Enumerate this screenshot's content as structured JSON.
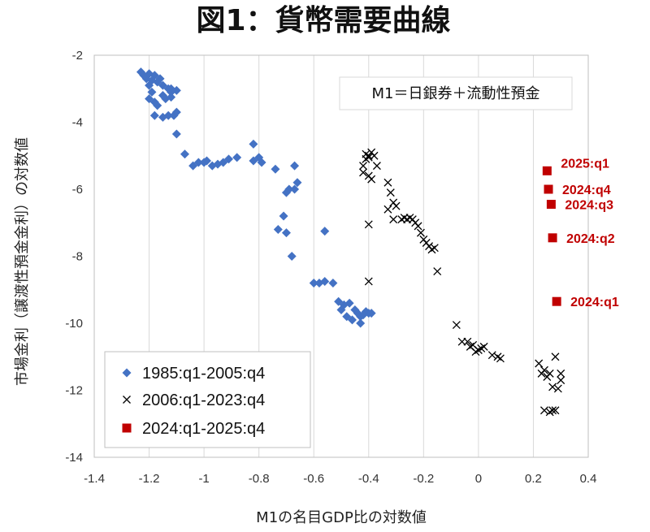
{
  "chart_data": {
    "type": "scatter",
    "title": "図1：貨幣需要曲線",
    "xlabel": "M1の名目GDP比の対数値",
    "ylabel": "市場金利（譲渡性預金金利）の対数値",
    "xlim": [
      -1.4,
      0.4
    ],
    "ylim": [
      -14,
      -2
    ],
    "x_ticks": [
      "-1.4",
      "-1.2",
      "-1",
      "-0.8",
      "-0.6",
      "-0.4",
      "-0.2",
      "0",
      "0.2",
      "0.4"
    ],
    "y_ticks": [
      "-2",
      "-4",
      "-6",
      "-8",
      "-10",
      "-12",
      "-14"
    ],
    "grid": "vertical",
    "legend_position": "bottom-left",
    "annotation": "M1＝日銀券＋流動性預金",
    "series": [
      {
        "name": "1985:q1-2005:q4",
        "marker": "diamond",
        "color": "#4472c4",
        "points": [
          [
            -1.23,
            -2.5
          ],
          [
            -1.22,
            -2.6
          ],
          [
            -1.21,
            -2.7
          ],
          [
            -1.2,
            -2.55
          ],
          [
            -1.19,
            -2.75
          ],
          [
            -1.2,
            -2.9
          ],
          [
            -1.18,
            -2.6
          ],
          [
            -1.17,
            -2.8
          ],
          [
            -1.16,
            -2.7
          ],
          [
            -1.15,
            -2.9
          ],
          [
            -1.19,
            -3.1
          ],
          [
            -1.2,
            -3.3
          ],
          [
            -1.18,
            -3.4
          ],
          [
            -1.15,
            -3.2
          ],
          [
            -1.13,
            -3.0
          ],
          [
            -1.12,
            -3.1
          ],
          [
            -1.1,
            -3.05
          ],
          [
            -1.14,
            -3.3
          ],
          [
            -1.12,
            -3.25
          ],
          [
            -1.17,
            -3.5
          ],
          [
            -1.18,
            -3.8
          ],
          [
            -1.15,
            -3.85
          ],
          [
            -1.13,
            -3.8
          ],
          [
            -1.11,
            -3.8
          ],
          [
            -1.1,
            -3.7
          ],
          [
            -1.12,
            -3.0
          ],
          [
            -1.1,
            -4.35
          ],
          [
            -1.07,
            -4.95
          ],
          [
            -1.04,
            -5.3
          ],
          [
            -1.02,
            -5.2
          ],
          [
            -1.0,
            -5.2
          ],
          [
            -0.99,
            -5.15
          ],
          [
            -0.97,
            -5.3
          ],
          [
            -0.95,
            -5.25
          ],
          [
            -0.93,
            -5.2
          ],
          [
            -0.91,
            -5.1
          ],
          [
            -0.88,
            -5.05
          ],
          [
            -0.82,
            -4.65
          ],
          [
            -0.82,
            -5.15
          ],
          [
            -0.8,
            -5.05
          ],
          [
            -0.79,
            -5.2
          ],
          [
            -0.74,
            -5.4
          ],
          [
            -0.67,
            -5.3
          ],
          [
            -0.66,
            -5.8
          ],
          [
            -0.67,
            -6.0
          ],
          [
            -0.69,
            -6.0
          ],
          [
            -0.7,
            -6.1
          ],
          [
            -0.71,
            -6.8
          ],
          [
            -0.73,
            -7.2
          ],
          [
            -0.7,
            -7.3
          ],
          [
            -0.56,
            -7.25
          ],
          [
            -0.68,
            -8.0
          ],
          [
            -0.6,
            -8.8
          ],
          [
            -0.58,
            -8.8
          ],
          [
            -0.56,
            -8.75
          ],
          [
            -0.53,
            -8.8
          ],
          [
            -0.51,
            -9.35
          ],
          [
            -0.49,
            -9.45
          ],
          [
            -0.47,
            -9.4
          ],
          [
            -0.45,
            -9.6
          ],
          [
            -0.44,
            -9.7
          ],
          [
            -0.43,
            -9.8
          ],
          [
            -0.41,
            -9.65
          ],
          [
            -0.4,
            -9.7
          ],
          [
            -0.46,
            -9.9
          ],
          [
            -0.43,
            -10.0
          ],
          [
            -0.48,
            -9.8
          ],
          [
            -0.42,
            -9.75
          ],
          [
            -0.5,
            -9.6
          ],
          [
            -0.39,
            -9.7
          ]
        ]
      },
      {
        "name": "2006:q1-2023:q4",
        "marker": "x",
        "color": "#000000",
        "points": [
          [
            -0.41,
            -4.95
          ],
          [
            -0.4,
            -5.0
          ],
          [
            -0.39,
            -4.9
          ],
          [
            -0.38,
            -5.0
          ],
          [
            -0.4,
            -5.05
          ],
          [
            -0.41,
            -5.1
          ],
          [
            -0.42,
            -5.3
          ],
          [
            -0.42,
            -5.5
          ],
          [
            -0.4,
            -5.6
          ],
          [
            -0.39,
            -5.7
          ],
          [
            -0.37,
            -5.3
          ],
          [
            -0.33,
            -5.8
          ],
          [
            -0.32,
            -6.1
          ],
          [
            -0.31,
            -6.4
          ],
          [
            -0.33,
            -6.6
          ],
          [
            -0.3,
            -6.5
          ],
          [
            -0.31,
            -6.9
          ],
          [
            -0.28,
            -6.9
          ],
          [
            -0.27,
            -6.85
          ],
          [
            -0.26,
            -6.9
          ],
          [
            -0.25,
            -6.85
          ],
          [
            -0.24,
            -6.9
          ],
          [
            -0.23,
            -7.0
          ],
          [
            -0.22,
            -7.1
          ],
          [
            -0.21,
            -7.3
          ],
          [
            -0.2,
            -7.5
          ],
          [
            -0.19,
            -7.6
          ],
          [
            -0.18,
            -7.7
          ],
          [
            -0.17,
            -7.8
          ],
          [
            -0.16,
            -7.75
          ],
          [
            -0.4,
            -7.05
          ],
          [
            -0.15,
            -8.45
          ],
          [
            -0.4,
            -8.75
          ],
          [
            -0.08,
            -10.05
          ],
          [
            -0.06,
            -10.55
          ],
          [
            -0.04,
            -10.55
          ],
          [
            -0.03,
            -10.7
          ],
          [
            -0.02,
            -10.65
          ],
          [
            -0.01,
            -10.85
          ],
          [
            0.0,
            -10.8
          ],
          [
            0.01,
            -10.75
          ],
          [
            0.02,
            -10.7
          ],
          [
            0.05,
            -10.95
          ],
          [
            0.07,
            -11.0
          ],
          [
            0.08,
            -11.05
          ],
          [
            0.22,
            -11.2
          ],
          [
            0.23,
            -11.5
          ],
          [
            0.24,
            -11.4
          ],
          [
            0.25,
            -11.6
          ],
          [
            0.26,
            -11.5
          ],
          [
            0.28,
            -11.0
          ],
          [
            0.27,
            -11.9
          ],
          [
            0.29,
            -11.95
          ],
          [
            0.3,
            -11.7
          ],
          [
            0.3,
            -11.5
          ],
          [
            0.24,
            -12.6
          ],
          [
            0.26,
            -12.65
          ],
          [
            0.28,
            -12.6
          ],
          [
            0.27,
            -12.6
          ]
        ]
      },
      {
        "name": "2024:q1-2025:q4",
        "marker": "square",
        "color": "#c00000",
        "points": [
          [
            0.25,
            -5.45
          ],
          [
            0.255,
            -6.0
          ],
          [
            0.265,
            -6.45
          ],
          [
            0.27,
            -7.45
          ],
          [
            0.285,
            -9.35
          ]
        ],
        "labels": [
          "2025:q1",
          "2024:q4",
          "2024:q3",
          "2024:q2",
          "2024:q1"
        ]
      }
    ]
  }
}
